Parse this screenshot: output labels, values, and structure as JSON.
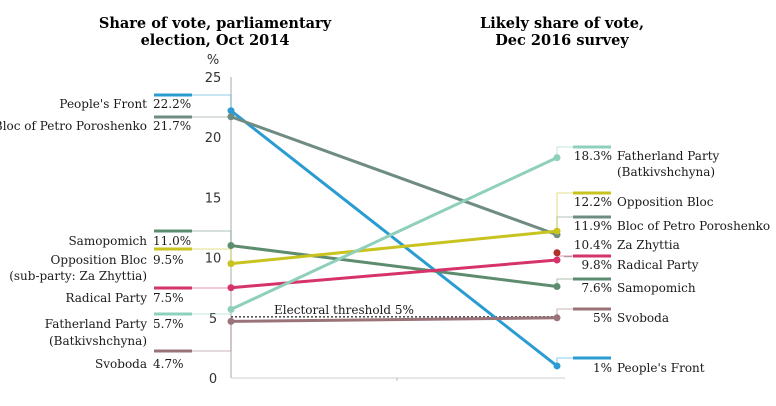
{
  "chart_data": {
    "type": "line",
    "titles": {
      "left": [
        "Share of vote, parliamentary",
        "election, Oct 2014"
      ],
      "right": [
        "Likely share of vote,",
        "Dec 2016 survey"
      ]
    },
    "y_unit": "%",
    "ylim": [
      0,
      25
    ],
    "yticks": [
      "25",
      "20",
      "15",
      "10",
      "5",
      "0"
    ],
    "threshold": {
      "value": 5,
      "label": "Electoral threshold 5%"
    },
    "series": [
      {
        "name": "People's Front",
        "color": "#2b9cd2",
        "start": 22.2,
        "end": 1.0,
        "start_label_lines": [
          "People's Front"
        ],
        "start_value": "22.2%",
        "end_label_lines": [
          "People's Front"
        ],
        "end_value": "1%"
      },
      {
        "name": "Bloc of Petro Poroshenko",
        "color": "#6f8c82",
        "start": 21.7,
        "end": 11.9,
        "start_label_lines": [
          "Bloc of Petro Poroshenko"
        ],
        "start_value": "21.7%",
        "end_label_lines": [
          "Bloc of Petro Poroshenko"
        ],
        "end_value": "11.9%"
      },
      {
        "name": "Samopomich",
        "color": "#5e8c6f",
        "start": 11.0,
        "end": 7.6,
        "start_label_lines": [
          "Samopomich"
        ],
        "start_value": "11.0%",
        "end_label_lines": [
          "Samopomich"
        ],
        "end_value": "7.6%"
      },
      {
        "name": "Opposition Bloc",
        "color": "#c8c31e",
        "start": 9.5,
        "end": 12.2,
        "start_label_lines": [
          "Opposition Bloc",
          "(sub-party: Za Zhyttia)"
        ],
        "start_value": "9.5%",
        "end_label_lines": [
          "Opposition Bloc"
        ],
        "end_value": "12.2%"
      },
      {
        "name": "Radical Party",
        "color": "#d6336b",
        "start": 7.5,
        "end": 9.8,
        "start_label_lines": [
          "Radical Party"
        ],
        "start_value": "7.5%",
        "end_label_lines": [
          "Radical Party"
        ],
        "end_value": "9.8%"
      },
      {
        "name": "Fatherland Party (Batkivshchyna)",
        "color": "#8fd0bd",
        "start": 5.7,
        "end": 18.3,
        "start_label_lines": [
          "Fatherland Party",
          "(Batkivshchyna)"
        ],
        "start_value": "5.7%",
        "end_label_lines": [
          "Fatherland Party",
          "(Batkivshchyna)"
        ],
        "end_value": "18.3%"
      },
      {
        "name": "Svoboda",
        "color": "#9a7378",
        "start": 4.7,
        "end": 5.0,
        "start_label_lines": [
          "Svoboda"
        ],
        "start_value": "4.7%",
        "end_label_lines": [
          "Svoboda"
        ],
        "end_value": "5%"
      }
    ],
    "extra_points": [
      {
        "name": "Za Zhyttia",
        "color": "#b0302a",
        "end": 10.4,
        "end_value": "10.4%"
      }
    ]
  }
}
